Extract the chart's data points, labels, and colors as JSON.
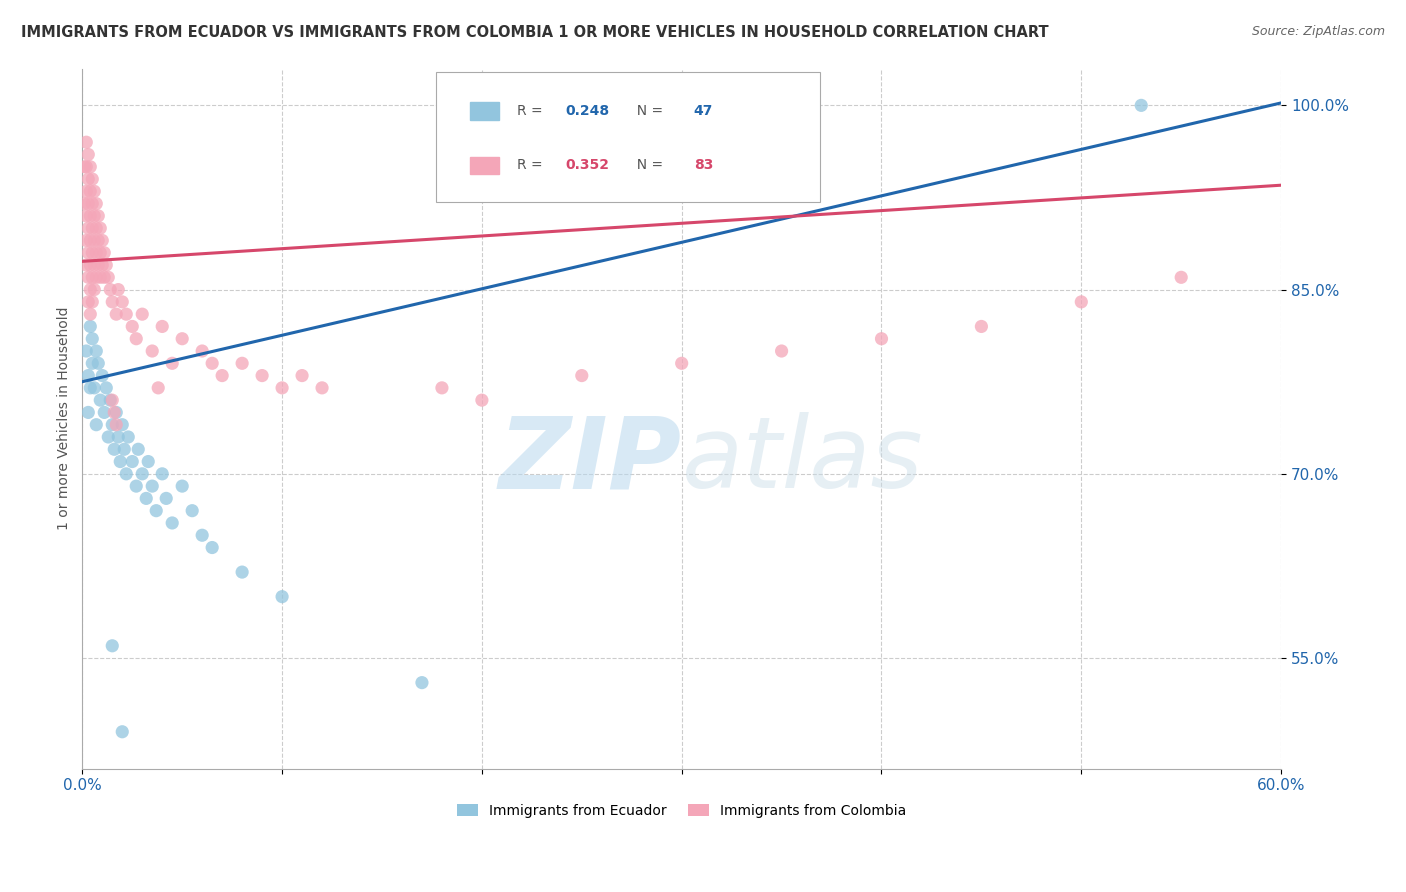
{
  "title": "IMMIGRANTS FROM ECUADOR VS IMMIGRANTS FROM COLOMBIA 1 OR MORE VEHICLES IN HOUSEHOLD CORRELATION CHART",
  "source": "Source: ZipAtlas.com",
  "ylabel": "1 or more Vehicles in Household",
  "xlim": [
    0.0,
    0.6
  ],
  "ylim": [
    0.46,
    1.03
  ],
  "yticks": [
    0.55,
    0.7,
    0.85,
    1.0
  ],
  "yticklabels": [
    "55.0%",
    "70.0%",
    "85.0%",
    "100.0%"
  ],
  "ecuador_color": "#92c5de",
  "colombia_color": "#f4a6b8",
  "ecuador_line_color": "#2166ac",
  "colombia_line_color": "#d6476b",
  "ecuador_R": 0.248,
  "ecuador_N": 47,
  "colombia_R": 0.352,
  "colombia_N": 83,
  "watermark_zip": "ZIP",
  "watermark_atlas": "atlas",
  "ecuador_scatter": [
    [
      0.002,
      0.8
    ],
    [
      0.003,
      0.78
    ],
    [
      0.003,
      0.75
    ],
    [
      0.004,
      0.82
    ],
    [
      0.004,
      0.77
    ],
    [
      0.005,
      0.79
    ],
    [
      0.005,
      0.81
    ],
    [
      0.006,
      0.77
    ],
    [
      0.007,
      0.8
    ],
    [
      0.007,
      0.74
    ],
    [
      0.008,
      0.79
    ],
    [
      0.009,
      0.76
    ],
    [
      0.01,
      0.78
    ],
    [
      0.011,
      0.75
    ],
    [
      0.012,
      0.77
    ],
    [
      0.013,
      0.73
    ],
    [
      0.014,
      0.76
    ],
    [
      0.015,
      0.74
    ],
    [
      0.016,
      0.72
    ],
    [
      0.017,
      0.75
    ],
    [
      0.018,
      0.73
    ],
    [
      0.019,
      0.71
    ],
    [
      0.02,
      0.74
    ],
    [
      0.021,
      0.72
    ],
    [
      0.022,
      0.7
    ],
    [
      0.023,
      0.73
    ],
    [
      0.025,
      0.71
    ],
    [
      0.027,
      0.69
    ],
    [
      0.028,
      0.72
    ],
    [
      0.03,
      0.7
    ],
    [
      0.032,
      0.68
    ],
    [
      0.033,
      0.71
    ],
    [
      0.035,
      0.69
    ],
    [
      0.037,
      0.67
    ],
    [
      0.04,
      0.7
    ],
    [
      0.042,
      0.68
    ],
    [
      0.045,
      0.66
    ],
    [
      0.05,
      0.69
    ],
    [
      0.055,
      0.67
    ],
    [
      0.06,
      0.65
    ],
    [
      0.065,
      0.64
    ],
    [
      0.08,
      0.62
    ],
    [
      0.1,
      0.6
    ],
    [
      0.015,
      0.56
    ],
    [
      0.17,
      0.53
    ],
    [
      0.02,
      0.49
    ],
    [
      0.53,
      1.0
    ]
  ],
  "colombia_scatter": [
    [
      0.001,
      0.95
    ],
    [
      0.001,
      0.92
    ],
    [
      0.002,
      0.97
    ],
    [
      0.002,
      0.95
    ],
    [
      0.002,
      0.93
    ],
    [
      0.002,
      0.91
    ],
    [
      0.002,
      0.89
    ],
    [
      0.002,
      0.87
    ],
    [
      0.003,
      0.96
    ],
    [
      0.003,
      0.94
    ],
    [
      0.003,
      0.92
    ],
    [
      0.003,
      0.9
    ],
    [
      0.003,
      0.88
    ],
    [
      0.003,
      0.86
    ],
    [
      0.003,
      0.84
    ],
    [
      0.004,
      0.95
    ],
    [
      0.004,
      0.93
    ],
    [
      0.004,
      0.91
    ],
    [
      0.004,
      0.89
    ],
    [
      0.004,
      0.87
    ],
    [
      0.004,
      0.85
    ],
    [
      0.004,
      0.83
    ],
    [
      0.005,
      0.94
    ],
    [
      0.005,
      0.92
    ],
    [
      0.005,
      0.9
    ],
    [
      0.005,
      0.88
    ],
    [
      0.005,
      0.86
    ],
    [
      0.005,
      0.84
    ],
    [
      0.006,
      0.93
    ],
    [
      0.006,
      0.91
    ],
    [
      0.006,
      0.89
    ],
    [
      0.006,
      0.87
    ],
    [
      0.006,
      0.85
    ],
    [
      0.007,
      0.92
    ],
    [
      0.007,
      0.9
    ],
    [
      0.007,
      0.88
    ],
    [
      0.007,
      0.86
    ],
    [
      0.008,
      0.91
    ],
    [
      0.008,
      0.89
    ],
    [
      0.008,
      0.87
    ],
    [
      0.009,
      0.9
    ],
    [
      0.009,
      0.88
    ],
    [
      0.009,
      0.86
    ],
    [
      0.01,
      0.89
    ],
    [
      0.01,
      0.87
    ],
    [
      0.011,
      0.88
    ],
    [
      0.011,
      0.86
    ],
    [
      0.012,
      0.87
    ],
    [
      0.013,
      0.86
    ],
    [
      0.014,
      0.85
    ],
    [
      0.015,
      0.84
    ],
    [
      0.017,
      0.83
    ],
    [
      0.018,
      0.85
    ],
    [
      0.02,
      0.84
    ],
    [
      0.022,
      0.83
    ],
    [
      0.025,
      0.82
    ],
    [
      0.027,
      0.81
    ],
    [
      0.03,
      0.83
    ],
    [
      0.035,
      0.8
    ],
    [
      0.04,
      0.82
    ],
    [
      0.045,
      0.79
    ],
    [
      0.05,
      0.81
    ],
    [
      0.06,
      0.8
    ],
    [
      0.065,
      0.79
    ],
    [
      0.07,
      0.78
    ],
    [
      0.08,
      0.79
    ],
    [
      0.09,
      0.78
    ],
    [
      0.1,
      0.77
    ],
    [
      0.11,
      0.78
    ],
    [
      0.12,
      0.77
    ],
    [
      0.015,
      0.76
    ],
    [
      0.18,
      0.77
    ],
    [
      0.2,
      0.76
    ],
    [
      0.038,
      0.77
    ],
    [
      0.25,
      0.78
    ],
    [
      0.3,
      0.79
    ],
    [
      0.35,
      0.8
    ],
    [
      0.4,
      0.81
    ],
    [
      0.45,
      0.82
    ],
    [
      0.016,
      0.75
    ],
    [
      0.5,
      0.84
    ],
    [
      0.017,
      0.74
    ],
    [
      0.55,
      0.86
    ]
  ]
}
